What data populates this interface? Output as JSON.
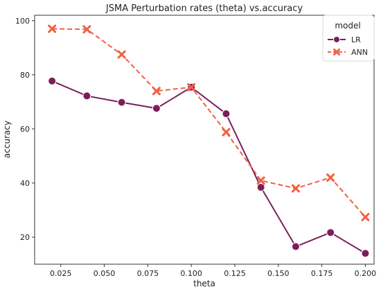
{
  "chart_data": {
    "type": "line",
    "title": "JSMA Perturbation rates (theta) vs.accuracy",
    "xlabel": "theta",
    "ylabel": "accuracy",
    "xlim": [
      0.01,
      0.205
    ],
    "ylim": [
      10,
      102
    ],
    "xticks": [
      "0.025",
      "0.050",
      "0.075",
      "0.100",
      "0.125",
      "0.150",
      "0.175",
      "0.200"
    ],
    "yticks": [
      "20",
      "40",
      "60",
      "80",
      "100"
    ],
    "grid": false,
    "legend": {
      "title": "model",
      "placement": "top-right"
    },
    "x": [
      0.02,
      0.04,
      0.06,
      0.08,
      0.1,
      0.12,
      0.14,
      0.16,
      0.18,
      0.2
    ],
    "series": [
      {
        "name": "LR",
        "color": "#7b1f5a",
        "marker": "circle",
        "line_style": "solid",
        "values": [
          77.7,
          72.2,
          69.8,
          67.6,
          75.4,
          65.6,
          38.4,
          16.5,
          21.7,
          14.0
        ]
      },
      {
        "name": "ANN",
        "color": "#f06043",
        "marker": "x",
        "line_style": "dashed",
        "values": [
          97.0,
          96.8,
          87.5,
          74.0,
          75.4,
          58.8,
          40.9,
          38.0,
          42.0,
          27.4
        ]
      }
    ]
  }
}
